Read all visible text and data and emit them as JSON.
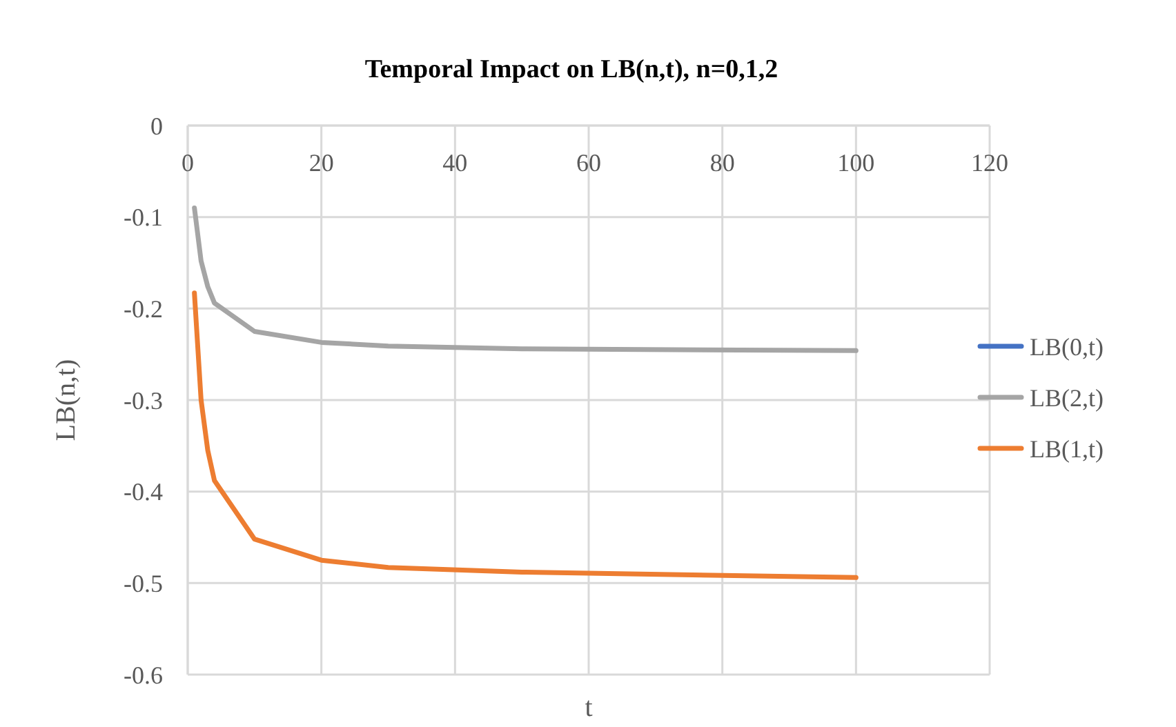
{
  "chart_data": {
    "type": "line",
    "title": "Temporal Impact on LB(n,t), n=0,1,2",
    "xlabel": "t",
    "ylabel": "LB(n,t)",
    "x": [
      1,
      2,
      3,
      4,
      10,
      20,
      30,
      50,
      100
    ],
    "series": [
      {
        "name": "LB(0,t)",
        "color": "#4472c4",
        "values": [
          null,
          null,
          null,
          null,
          null,
          null,
          null,
          null,
          null
        ]
      },
      {
        "name": "LB(2,t)",
        "color": "#a5a5a5",
        "values": [
          -0.09,
          -0.148,
          -0.176,
          -0.194,
          -0.225,
          -0.237,
          -0.241,
          -0.244,
          -0.246
        ]
      },
      {
        "name": "LB(1,t)",
        "color": "#ed7d31",
        "values": [
          -0.183,
          -0.3,
          -0.355,
          -0.388,
          -0.452,
          -0.475,
          -0.483,
          -0.488,
          -0.494
        ]
      }
    ],
    "xlim": [
      0,
      120
    ],
    "xticks": [
      0,
      20,
      40,
      60,
      80,
      100,
      120
    ],
    "ylim": [
      -0.6,
      0
    ],
    "yticks": [
      -0.6,
      -0.5,
      -0.4,
      -0.3,
      -0.2,
      -0.1,
      0
    ],
    "grid": true,
    "legend": "right",
    "marker": "none",
    "line_style": "solid"
  }
}
